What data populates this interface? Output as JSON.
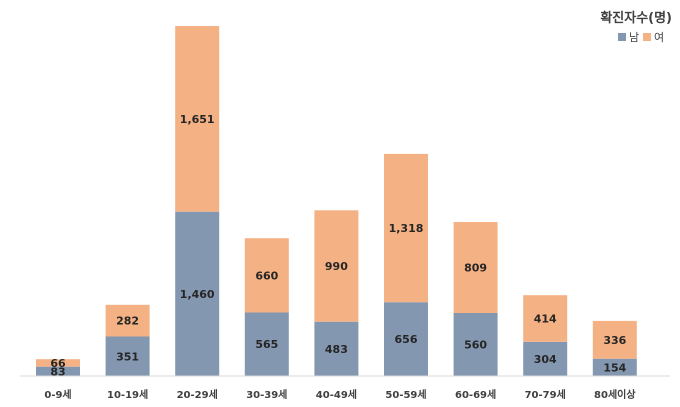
{
  "chart_data": {
    "type": "bar",
    "stacked": true,
    "categories": [
      "0-9세",
      "10-19세",
      "20-29세",
      "30-39세",
      "40-49세",
      "50-59세",
      "60-69세",
      "70-79세",
      "80세이상"
    ],
    "series": [
      {
        "name": "남",
        "color": "#8497B0",
        "values": [
          83,
          351,
          1460,
          565,
          483,
          656,
          560,
          304,
          154
        ]
      },
      {
        "name": "여",
        "color": "#F4B183",
        "values": [
          66,
          282,
          1651,
          660,
          990,
          1318,
          809,
          414,
          336
        ]
      }
    ],
    "value_labels": {
      "남": [
        "83",
        "351",
        "1,460",
        "565",
        "483",
        "656",
        "560",
        "304",
        "154"
      ],
      "여": [
        "66",
        "282",
        "1,651",
        "660",
        "990",
        "1,318",
        "809",
        "414",
        "336"
      ]
    },
    "legend_title": "확진자수(명)",
    "legend_position": "top-right",
    "ylim": [
      0,
      3111
    ],
    "grid": false,
    "axis_color": "#D9D9D9"
  }
}
